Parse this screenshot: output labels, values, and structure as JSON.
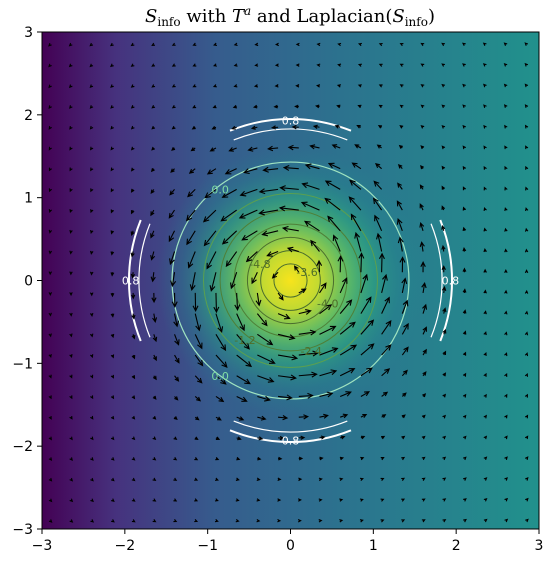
{
  "chart_data": {
    "type": "heatmap",
    "title": {
      "s_symbol": "S",
      "s_sub": "info",
      "mid": " with ",
      "t_symbol": "T",
      "t_sup": "a",
      "tail": " and Laplacian(",
      "tail_sub": "info",
      "close": ")"
    },
    "xlim": [
      -3,
      3
    ],
    "ylim": [
      -3,
      3
    ],
    "xticks": [
      "−3",
      "−2",
      "−1",
      "0",
      "1",
      "2",
      "3"
    ],
    "yticks": [
      "−3",
      "−2",
      "−1",
      "0",
      "1",
      "2",
      "3"
    ],
    "xtick_values": [
      -3,
      -2,
      -1,
      0,
      1,
      2,
      3
    ],
    "ytick_values": [
      -3,
      -2,
      -1,
      0,
      1,
      2,
      3
    ],
    "heatmap": {
      "colormap": "viridis",
      "peak_center": [
        0,
        0
      ],
      "peak_value": 1.0,
      "peak_sigma": 0.85,
      "gradient_left_value": 0.0,
      "gradient_right_value": 0.45
    },
    "contour_labels": [
      {
        "text": "0.8",
        "x": 0,
        "y": 1.93,
        "color": "#ffffff"
      },
      {
        "text": "0.8",
        "x": 0,
        "y": -1.93,
        "color": "#ffffff"
      },
      {
        "text": "0.8",
        "x": -1.93,
        "y": 0,
        "color": "#ffffff"
      },
      {
        "text": "0.8",
        "x": 1.93,
        "y": 0,
        "color": "#ffffff"
      },
      {
        "text": "0.0",
        "x": -0.85,
        "y": 1.1,
        "color": "#7fdca4"
      },
      {
        "text": "0.0",
        "x": -0.85,
        "y": -1.15,
        "color": "#7fdca4"
      },
      {
        "text": "-3.6",
        "x": 0.2,
        "y": 0.1,
        "color": "#4f6e2a"
      },
      {
        "text": "-4.8",
        "x": -0.37,
        "y": 0.2,
        "color": "#4f6e2a"
      },
      {
        "text": "-4.0",
        "x": 0.45,
        "y": -0.28,
        "color": "#4f6e2a"
      },
      {
        "text": "-2.4",
        "x": 0.25,
        "y": -0.85,
        "color": "#4f6e2a"
      },
      {
        "text": "-1.2",
        "x": -0.55,
        "y": -0.72,
        "color": "#4f6e2a"
      }
    ],
    "vector_field": {
      "name": "T^a",
      "grid_step": 0.25,
      "description": "rotational field around origin, strongest near radius 0.9"
    }
  }
}
